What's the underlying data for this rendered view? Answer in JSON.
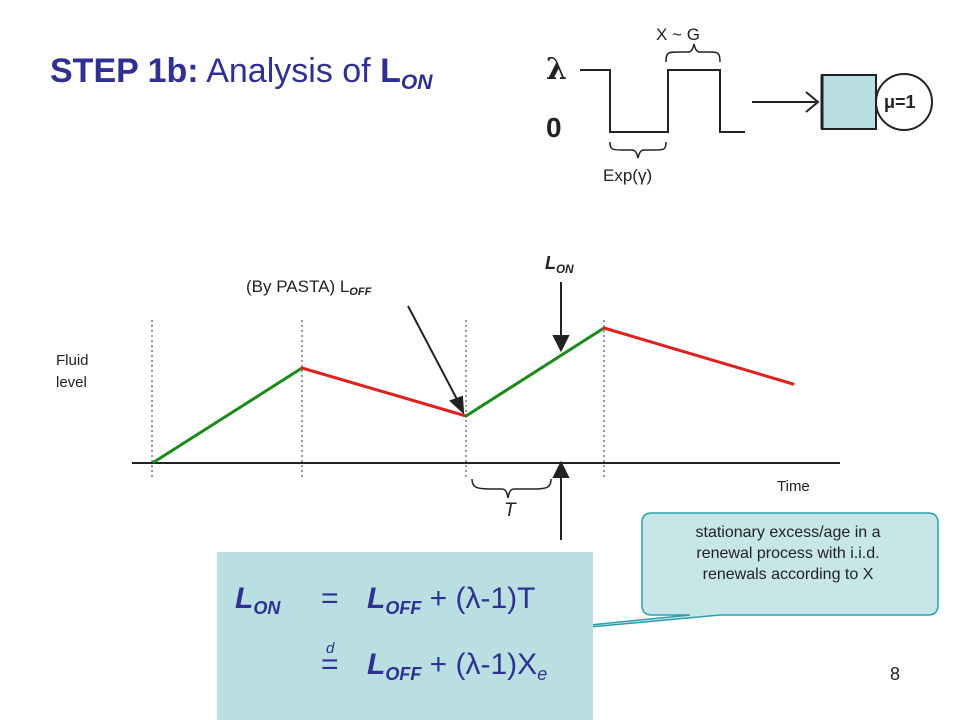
{
  "title": {
    "step": "STEP 1b:",
    "text": "Analysis of",
    "var": "L",
    "var_sub": "ON"
  },
  "source": {
    "lambda": "λ",
    "zero": "0",
    "x_dist": "X ~ G",
    "exp_dist": "Exp(γ)",
    "mu": "μ=1"
  },
  "graph": {
    "y_label_1": "Fluid",
    "y_label_2": "level",
    "x_label": "Time",
    "t_label": "T",
    "l_on": "L",
    "l_on_sub": "ON",
    "pasta": "(By PASTA) L",
    "pasta_sub": "OFF"
  },
  "formula": {
    "row1_lhs": "L",
    "row1_lhs_sub": "ON",
    "eq": "=",
    "row1_rhs_a": "L",
    "row1_rhs_sub": "OFF",
    "row1_rhs_b": " + (λ-1)T",
    "d": "d",
    "row2_rhs_a": "L",
    "row2_rhs_sub": "OFF",
    "row2_rhs_b": " + (λ-1)X",
    "row2_rhs_sub2": "e"
  },
  "callout": {
    "line1": "stationary excess/age in a",
    "line2": "renewal process with i.i.d.",
    "line3": "renewals according to X"
  },
  "page_number": "8",
  "colors": {
    "title": "#2e3192",
    "up": "#1a8a1a",
    "down": "#e0201c",
    "box": "#b9dfe2",
    "callout": "#c6e6e8"
  }
}
